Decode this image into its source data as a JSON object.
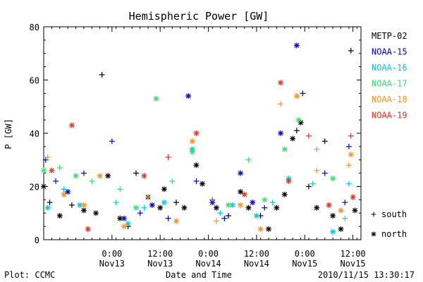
{
  "chart_data": {
    "type": "scatter",
    "title": "Hemispheric Power [GW]",
    "xlabel": "Date and Time",
    "ylabel": "P [GW]",
    "ylim": [
      0,
      80
    ],
    "yticks": [
      "0",
      "20",
      "40",
      "60",
      "80"
    ],
    "xlim": [
      "2010-11-12 07:00",
      "2010-11-15 14:00"
    ],
    "xticks": [
      {
        "x": "2010-11-13 00:00",
        "line1": "0:00",
        "line2": "Nov13"
      },
      {
        "x": "2010-11-13 12:00",
        "line1": "12:00",
        "line2": "Nov13"
      },
      {
        "x": "2010-11-14 00:00",
        "line1": "0:00",
        "line2": "Nov14"
      },
      {
        "x": "2010-11-14 12:00",
        "line1": "12:00",
        "line2": "Nov14"
      },
      {
        "x": "2010-11-15 00:00",
        "line1": "0:00",
        "line2": "Nov15"
      },
      {
        "x": "2010-11-15 12:00",
        "line1": "12:00",
        "line2": "Nov15"
      }
    ],
    "grid": false,
    "legend_position": "right",
    "series": [
      {
        "name": "METP-02",
        "color": "#000000",
        "points": [
          {
            "x": "2010-11-12 07:00",
            "y": 20,
            "hemi": "north"
          },
          {
            "x": "2010-11-12 08:30",
            "y": 14,
            "hemi": "south"
          },
          {
            "x": "2010-11-12 11:00",
            "y": 9,
            "hemi": "north"
          },
          {
            "x": "2010-11-12 14:00",
            "y": 13,
            "hemi": "south"
          },
          {
            "x": "2010-11-12 17:00",
            "y": 11,
            "hemi": "north"
          },
          {
            "x": "2010-11-12 20:00",
            "y": 10,
            "hemi": "north"
          },
          {
            "x": "2010-11-12 21:30",
            "y": 62,
            "hemi": "south"
          },
          {
            "x": "2010-11-12 23:00",
            "y": 24,
            "hemi": "north"
          },
          {
            "x": "2010-11-13 02:00",
            "y": 8,
            "hemi": "north"
          },
          {
            "x": "2010-11-13 04:00",
            "y": 5,
            "hemi": "south"
          },
          {
            "x": "2010-11-13 06:00",
            "y": 25,
            "hemi": "south"
          },
          {
            "x": "2010-11-13 09:00",
            "y": 16,
            "hemi": "north"
          },
          {
            "x": "2010-11-13 12:00",
            "y": 12,
            "hemi": "north"
          },
          {
            "x": "2010-11-13 13:00",
            "y": 19,
            "hemi": "north"
          },
          {
            "x": "2010-11-13 16:00",
            "y": 14,
            "hemi": "south"
          },
          {
            "x": "2010-11-13 18:00",
            "y": 12,
            "hemi": "north"
          },
          {
            "x": "2010-11-13 21:00",
            "y": 28,
            "hemi": "north"
          },
          {
            "x": "2010-11-13 22:30",
            "y": 21,
            "hemi": "north"
          },
          {
            "x": "2010-11-14 02:00",
            "y": 12,
            "hemi": "north"
          },
          {
            "x": "2010-11-14 05:00",
            "y": 9,
            "hemi": "south"
          },
          {
            "x": "2010-11-14 08:00",
            "y": 18,
            "hemi": "north"
          },
          {
            "x": "2010-11-14 10:00",
            "y": 12,
            "hemi": "north"
          },
          {
            "x": "2010-11-14 13:00",
            "y": 9,
            "hemi": "south"
          },
          {
            "x": "2010-11-14 15:00",
            "y": 4,
            "hemi": "north"
          },
          {
            "x": "2010-11-14 17:00",
            "y": 12,
            "hemi": "north"
          },
          {
            "x": "2010-11-14 19:00",
            "y": 17,
            "hemi": "north"
          },
          {
            "x": "2010-11-14 21:00",
            "y": 38,
            "hemi": "north"
          },
          {
            "x": "2010-11-14 22:00",
            "y": 41,
            "hemi": "south"
          },
          {
            "x": "2010-11-14 23:00",
            "y": 44,
            "hemi": "north"
          },
          {
            "x": "2010-11-15 01:00",
            "y": 20,
            "hemi": "south"
          },
          {
            "x": "2010-11-15 03:00",
            "y": 12,
            "hemi": "north"
          },
          {
            "x": "2010-11-15 05:00",
            "y": 37,
            "hemi": "south"
          },
          {
            "x": "2010-11-15 07:00",
            "y": 9,
            "hemi": "north"
          },
          {
            "x": "2010-11-15 09:00",
            "y": 4,
            "hemi": "north"
          },
          {
            "x": "2010-11-15 11:30",
            "y": 71,
            "hemi": "south"
          },
          {
            "x": "2010-11-15 12:30",
            "y": 11,
            "hemi": "north"
          }
        ]
      },
      {
        "name": "NOAA-15",
        "color": "#0000dd",
        "points": [
          {
            "x": "2010-11-12 07:30",
            "y": 30,
            "hemi": "south"
          },
          {
            "x": "2010-11-12 10:00",
            "y": 22,
            "hemi": "south"
          },
          {
            "x": "2010-11-12 13:00",
            "y": 18,
            "hemi": "north"
          },
          {
            "x": "2010-11-12 17:00",
            "y": 25,
            "hemi": "south"
          },
          {
            "x": "2010-11-13 00:00",
            "y": 37,
            "hemi": "south"
          },
          {
            "x": "2010-11-13 03:00",
            "y": 8,
            "hemi": "north"
          },
          {
            "x": "2010-11-13 07:00",
            "y": 10,
            "hemi": "south"
          },
          {
            "x": "2010-11-13 10:00",
            "y": 13,
            "hemi": "north"
          },
          {
            "x": "2010-11-13 14:00",
            "y": 8,
            "hemi": "south"
          },
          {
            "x": "2010-11-13 19:00",
            "y": 54,
            "hemi": "north"
          },
          {
            "x": "2010-11-13 21:00",
            "y": 22,
            "hemi": "south"
          },
          {
            "x": "2010-11-14 01:00",
            "y": 14,
            "hemi": "north"
          },
          {
            "x": "2010-11-14 04:00",
            "y": 8,
            "hemi": "south"
          },
          {
            "x": "2010-11-14 08:00",
            "y": 25,
            "hemi": "north"
          },
          {
            "x": "2010-11-14 11:00",
            "y": 14,
            "hemi": "north"
          },
          {
            "x": "2010-11-14 14:00",
            "y": 12,
            "hemi": "south"
          },
          {
            "x": "2010-11-14 18:00",
            "y": 40,
            "hemi": "north"
          },
          {
            "x": "2010-11-14 22:00",
            "y": 73,
            "hemi": "north"
          },
          {
            "x": "2010-11-14 23:30",
            "y": 55,
            "hemi": "south"
          },
          {
            "x": "2010-11-15 05:00",
            "y": 25,
            "hemi": "south"
          },
          {
            "x": "2010-11-15 10:00",
            "y": 14,
            "hemi": "south"
          },
          {
            "x": "2010-11-15 11:00",
            "y": 35,
            "hemi": "south"
          }
        ]
      },
      {
        "name": "NOAA-16",
        "color": "#00c8e0",
        "points": [
          {
            "x": "2010-11-12 08:00",
            "y": 12,
            "hemi": "north"
          },
          {
            "x": "2010-11-12 12:00",
            "y": 19,
            "hemi": "south"
          },
          {
            "x": "2010-11-12 16:00",
            "y": 13,
            "hemi": "north"
          },
          {
            "x": "2010-11-13 01:00",
            "y": 14,
            "hemi": "south"
          },
          {
            "x": "2010-11-13 04:00",
            "y": 6,
            "hemi": "north"
          },
          {
            "x": "2010-11-13 08:00",
            "y": 12,
            "hemi": "south"
          },
          {
            "x": "2010-11-13 13:00",
            "y": 14,
            "hemi": "north"
          },
          {
            "x": "2010-11-13 20:00",
            "y": 34,
            "hemi": "north"
          },
          {
            "x": "2010-11-14 03:00",
            "y": 10,
            "hemi": "south"
          },
          {
            "x": "2010-11-14 06:00",
            "y": 13,
            "hemi": "north"
          },
          {
            "x": "2010-11-14 12:00",
            "y": 9,
            "hemi": "north"
          },
          {
            "x": "2010-11-14 16:00",
            "y": 14,
            "hemi": "south"
          },
          {
            "x": "2010-11-14 20:00",
            "y": 23,
            "hemi": "north"
          },
          {
            "x": "2010-11-15 02:00",
            "y": 21,
            "hemi": "south"
          },
          {
            "x": "2010-11-15 07:00",
            "y": 3,
            "hemi": "north"
          },
          {
            "x": "2010-11-15 11:00",
            "y": 21,
            "hemi": "south"
          }
        ]
      },
      {
        "name": "NOAA-17",
        "color": "#30e070",
        "points": [
          {
            "x": "2010-11-12 07:00",
            "y": 26,
            "hemi": "north"
          },
          {
            "x": "2010-11-12 11:00",
            "y": 27,
            "hemi": "south"
          },
          {
            "x": "2010-11-12 15:00",
            "y": 24,
            "hemi": "north"
          },
          {
            "x": "2010-11-12 19:00",
            "y": 22,
            "hemi": "south"
          },
          {
            "x": "2010-11-13 02:00",
            "y": 19,
            "hemi": "south"
          },
          {
            "x": "2010-11-13 06:00",
            "y": 12,
            "hemi": "north"
          },
          {
            "x": "2010-11-13 11:00",
            "y": 53,
            "hemi": "north"
          },
          {
            "x": "2010-11-13 15:00",
            "y": 22,
            "hemi": "south"
          },
          {
            "x": "2010-11-13 20:00",
            "y": 33,
            "hemi": "north"
          },
          {
            "x": "2010-11-14 05:00",
            "y": 13,
            "hemi": "north"
          },
          {
            "x": "2010-11-14 10:00",
            "y": 30,
            "hemi": "south"
          },
          {
            "x": "2010-11-14 14:00",
            "y": 15,
            "hemi": "north"
          },
          {
            "x": "2010-11-14 19:00",
            "y": 34,
            "hemi": "north"
          },
          {
            "x": "2010-11-14 22:30",
            "y": 45,
            "hemi": "north"
          },
          {
            "x": "2010-11-15 03:00",
            "y": 34,
            "hemi": "south"
          },
          {
            "x": "2010-11-15 07:00",
            "y": 23,
            "hemi": "north"
          },
          {
            "x": "2010-11-15 10:00",
            "y": 8,
            "hemi": "south"
          }
        ]
      },
      {
        "name": "NOAA-18",
        "color": "#ff9020",
        "points": [
          {
            "x": "2010-11-12 08:00",
            "y": 31,
            "hemi": "south"
          },
          {
            "x": "2010-11-12 12:00",
            "y": 17,
            "hemi": "north"
          },
          {
            "x": "2010-11-12 17:00",
            "y": 13,
            "hemi": "north"
          },
          {
            "x": "2010-11-12 21:00",
            "y": 24,
            "hemi": "north"
          },
          {
            "x": "2010-11-13 03:00",
            "y": 5,
            "hemi": "north"
          },
          {
            "x": "2010-11-13 09:00",
            "y": 16,
            "hemi": "south"
          },
          {
            "x": "2010-11-13 16:00",
            "y": 7,
            "hemi": "north"
          },
          {
            "x": "2010-11-13 20:00",
            "y": 37,
            "hemi": "north"
          },
          {
            "x": "2010-11-14 02:00",
            "y": 7,
            "hemi": "south"
          },
          {
            "x": "2010-11-14 08:00",
            "y": 13,
            "hemi": "north"
          },
          {
            "x": "2010-11-14 13:00",
            "y": 4,
            "hemi": "north"
          },
          {
            "x": "2010-11-14 18:00",
            "y": 51,
            "hemi": "south"
          },
          {
            "x": "2010-11-14 22:00",
            "y": 54,
            "hemi": "north"
          },
          {
            "x": "2010-11-15 03:00",
            "y": 26,
            "hemi": "south"
          },
          {
            "x": "2010-11-15 09:00",
            "y": 11,
            "hemi": "north"
          },
          {
            "x": "2010-11-15 11:00",
            "y": 28,
            "hemi": "south"
          },
          {
            "x": "2010-11-15 11:30",
            "y": 32,
            "hemi": "north"
          }
        ]
      },
      {
        "name": "NOAA-19",
        "color": "#ee3020",
        "points": [
          {
            "x": "2010-11-12 09:00",
            "y": 26,
            "hemi": "north"
          },
          {
            "x": "2010-11-12 14:00",
            "y": 43,
            "hemi": "north"
          },
          {
            "x": "2010-11-12 18:00",
            "y": 4,
            "hemi": "north"
          },
          {
            "x": "2010-11-13 08:00",
            "y": 24,
            "hemi": "north"
          },
          {
            "x": "2010-11-13 14:00",
            "y": 31,
            "hemi": "south"
          },
          {
            "x": "2010-11-13 21:00",
            "y": 40,
            "hemi": "north"
          },
          {
            "x": "2010-11-14 01:00",
            "y": 15,
            "hemi": "south"
          },
          {
            "x": "2010-11-14 09:00",
            "y": 17,
            "hemi": "north"
          },
          {
            "x": "2010-11-14 18:00",
            "y": 59,
            "hemi": "north"
          },
          {
            "x": "2010-11-14 20:00",
            "y": 22,
            "hemi": "north"
          },
          {
            "x": "2010-11-15 01:00",
            "y": 39,
            "hemi": "south"
          },
          {
            "x": "2010-11-15 06:00",
            "y": 13,
            "hemi": "north"
          },
          {
            "x": "2010-11-15 12:00",
            "y": 16,
            "hemi": "north"
          },
          {
            "x": "2010-11-15 11:30",
            "y": 39,
            "hemi": "south"
          }
        ]
      }
    ],
    "hemisphere_legend": [
      {
        "symbol": "+",
        "label": "south"
      },
      {
        "symbol": "*",
        "label": "north"
      }
    ]
  },
  "footer": {
    "left": "Plot: CCMC",
    "right": "2010/11/15 13:30:17"
  }
}
